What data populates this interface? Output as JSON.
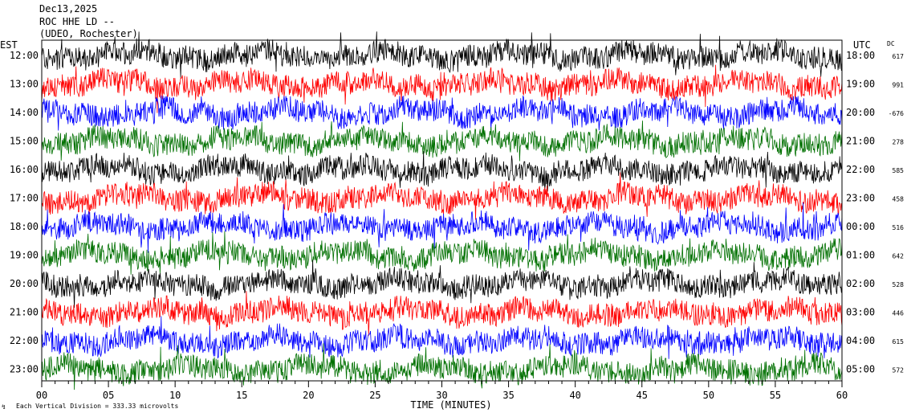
{
  "header": {
    "date": "Dec13,2025",
    "station": "ROC HHE LD --",
    "site": "(UDEO, Rochester)"
  },
  "chart_data": {
    "type": "line",
    "title": "",
    "xlabel": "TIME (MINUTES)",
    "left_axis_label": "EST",
    "right_axis_label": "UTC",
    "dc_label": "DC",
    "xlim": [
      0,
      60
    ],
    "x_ticks": [
      "00",
      "05",
      "10",
      "15",
      "20",
      "25",
      "30",
      "35",
      "40",
      "45",
      "50",
      "55",
      "60"
    ],
    "scale_note": "Each Vertical Division =  333.33 microvolts",
    "colors": [
      "#000000",
      "#ff0000",
      "#0000ff",
      "#007000"
    ],
    "rows": [
      {
        "est": "12:00",
        "utc": "18:00",
        "dc": "617"
      },
      {
        "est": "13:00",
        "utc": "19:00",
        "dc": "991"
      },
      {
        "est": "14:00",
        "utc": "20:00",
        "dc": "-676"
      },
      {
        "est": "15:00",
        "utc": "21:00",
        "dc": "278"
      },
      {
        "est": "16:00",
        "utc": "22:00",
        "dc": "585"
      },
      {
        "est": "17:00",
        "utc": "23:00",
        "dc": "458"
      },
      {
        "est": "18:00",
        "utc": "00:00",
        "dc": "516"
      },
      {
        "est": "19:00",
        "utc": "01:00",
        "dc": "642"
      },
      {
        "est": "20:00",
        "utc": "02:00",
        "dc": "528"
      },
      {
        "est": "21:00",
        "utc": "03:00",
        "dc": "446"
      },
      {
        "est": "22:00",
        "utc": "04:00",
        "dc": "615"
      },
      {
        "est": "23:00",
        "utc": "05:00",
        "dc": "572"
      }
    ]
  }
}
